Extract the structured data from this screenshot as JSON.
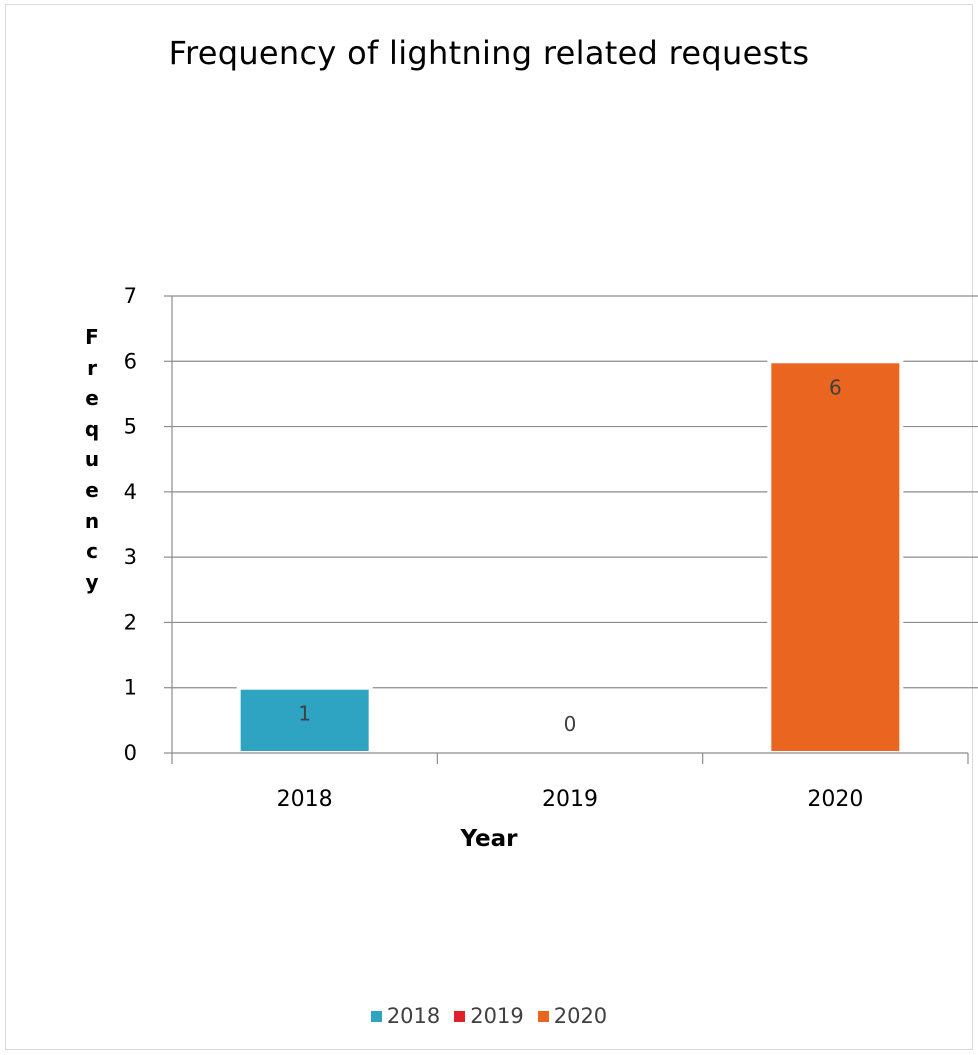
{
  "chart_data": {
    "type": "bar",
    "title": "Frequency of lightning related requests",
    "xlabel": "Year",
    "ylabel": "Frequency",
    "categories": [
      "2018",
      "2019",
      "2020"
    ],
    "values": [
      1,
      0,
      6
    ],
    "data_labels": [
      "1",
      "0",
      "6"
    ],
    "colors": [
      "#2ea4c2",
      "#e0202a",
      "#ea6520"
    ],
    "ylim": [
      0,
      7
    ],
    "yticks": [
      "0",
      "1",
      "2",
      "3",
      "4",
      "5",
      "6",
      "7"
    ],
    "grid": true,
    "legend": {
      "position": "bottom",
      "entries": [
        {
          "label": "2018",
          "color": "#2ea4c2"
        },
        {
          "label": "2019",
          "color": "#e0202a"
        },
        {
          "label": "2020",
          "color": "#ea6520"
        }
      ]
    }
  }
}
